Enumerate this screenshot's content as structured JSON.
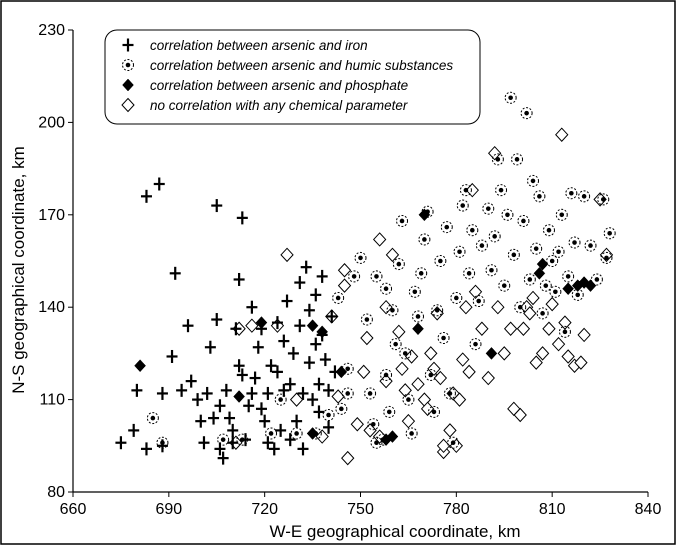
{
  "chart_data": {
    "type": "scatter",
    "xlabel": "W-E geographical coordinate, km",
    "ylabel": "N-S geographical coordinate, km",
    "xlim": [
      660,
      840
    ],
    "ylim": [
      80,
      230
    ],
    "x_ticks": [
      660,
      690,
      720,
      750,
      780,
      810,
      840
    ],
    "y_ticks": [
      80,
      110,
      140,
      170,
      200,
      230
    ],
    "x_tick_labels": [
      "660",
      "690",
      "720",
      "750",
      "780",
      "810",
      "840"
    ],
    "y_tick_labels": [
      "80",
      "110",
      "140",
      "170",
      "200",
      "230"
    ],
    "legend_position": "top-left",
    "grid": false,
    "series": [
      {
        "name": "correlation between arsenic and iron",
        "marker": "plus",
        "points": [
          [
            675,
            96
          ],
          [
            679,
            100
          ],
          [
            680,
            113
          ],
          [
            683,
            176
          ],
          [
            687,
            180
          ],
          [
            683,
            94
          ],
          [
            688,
            95
          ],
          [
            688,
            112
          ],
          [
            691,
            124
          ],
          [
            692,
            151
          ],
          [
            694,
            113
          ],
          [
            696,
            134
          ],
          [
            697,
            116
          ],
          [
            699,
            110
          ],
          [
            700,
            103
          ],
          [
            701,
            96
          ],
          [
            702,
            112
          ],
          [
            703,
            127
          ],
          [
            704,
            104
          ],
          [
            705,
            136
          ],
          [
            705,
            173
          ],
          [
            706,
            94
          ],
          [
            707,
            91
          ],
          [
            708,
            113
          ],
          [
            709,
            104
          ],
          [
            710,
            100
          ],
          [
            711,
            133
          ],
          [
            712,
            121
          ],
          [
            712,
            149
          ],
          [
            713,
            169
          ],
          [
            714,
            97
          ],
          [
            715,
            108
          ],
          [
            716,
            112
          ],
          [
            717,
            117
          ],
          [
            718,
            127
          ],
          [
            719,
            133
          ],
          [
            720,
            103
          ],
          [
            721,
            96
          ],
          [
            721,
            112
          ],
          [
            722,
            121
          ],
          [
            723,
            94
          ],
          [
            724,
            119
          ],
          [
            724,
            135
          ],
          [
            725,
            100
          ],
          [
            726,
            113
          ],
          [
            726,
            129
          ],
          [
            727,
            142
          ],
          [
            728,
            97
          ],
          [
            728,
            115
          ],
          [
            729,
            125
          ],
          [
            730,
            103
          ],
          [
            731,
            134
          ],
          [
            731,
            148
          ],
          [
            732,
            112
          ],
          [
            732,
            94
          ],
          [
            733,
            153
          ],
          [
            734,
            122
          ],
          [
            734,
            139
          ],
          [
            735,
            110
          ],
          [
            736,
            128
          ],
          [
            736,
            144
          ],
          [
            737,
            106
          ],
          [
            737,
            115
          ],
          [
            738,
            150
          ],
          [
            738,
            131
          ],
          [
            739,
            123
          ],
          [
            740,
            101
          ],
          [
            740,
            113
          ],
          [
            741,
            137
          ],
          [
            742,
            119
          ],
          [
            710,
            96
          ],
          [
            713,
            118
          ],
          [
            716,
            140
          ],
          [
            719,
            107
          ],
          [
            706,
            108
          ]
        ]
      },
      {
        "name": "correlation between arsenic and humic substances",
        "marker": "dotted-circle",
        "points": [
          [
            685,
            104
          ],
          [
            688,
            96
          ],
          [
            707,
            97
          ],
          [
            713,
            97
          ],
          [
            736,
            99
          ],
          [
            740,
            105
          ],
          [
            744,
            107
          ],
          [
            746,
            120
          ],
          [
            748,
            150
          ],
          [
            750,
            156
          ],
          [
            752,
            136
          ],
          [
            753,
            112
          ],
          [
            754,
            102
          ],
          [
            755,
            150
          ],
          [
            757,
            97
          ],
          [
            758,
            118
          ],
          [
            758,
            146
          ],
          [
            759,
            106
          ],
          [
            760,
            139
          ],
          [
            761,
            128
          ],
          [
            762,
            154
          ],
          [
            763,
            168
          ],
          [
            764,
            125
          ],
          [
            765,
            110
          ],
          [
            766,
            99
          ],
          [
            767,
            145
          ],
          [
            768,
            137
          ],
          [
            769,
            151
          ],
          [
            770,
            162
          ],
          [
            771,
            171
          ],
          [
            772,
            118
          ],
          [
            773,
            106
          ],
          [
            774,
            139
          ],
          [
            775,
            155
          ],
          [
            776,
            130
          ],
          [
            777,
            166
          ],
          [
            778,
            112
          ],
          [
            779,
            96
          ],
          [
            780,
            143
          ],
          [
            781,
            158
          ],
          [
            782,
            173
          ],
          [
            783,
            178
          ],
          [
            784,
            151
          ],
          [
            785,
            165
          ],
          [
            786,
            128
          ],
          [
            787,
            142
          ],
          [
            788,
            160
          ],
          [
            790,
            172
          ],
          [
            791,
            152
          ],
          [
            792,
            163
          ],
          [
            793,
            188
          ],
          [
            794,
            178
          ],
          [
            795,
            147
          ],
          [
            796,
            170
          ],
          [
            797,
            208
          ],
          [
            798,
            157
          ],
          [
            799,
            188
          ],
          [
            800,
            140
          ],
          [
            801,
            168
          ],
          [
            802,
            203
          ],
          [
            803,
            149
          ],
          [
            804,
            181
          ],
          [
            805,
            159
          ],
          [
            806,
            176
          ],
          [
            807,
            138
          ],
          [
            808,
            147
          ],
          [
            809,
            165
          ],
          [
            810,
            155
          ],
          [
            811,
            145
          ],
          [
            812,
            158
          ],
          [
            813,
            170
          ],
          [
            814,
            132
          ],
          [
            815,
            150
          ],
          [
            816,
            177
          ],
          [
            817,
            161
          ],
          [
            818,
            144
          ],
          [
            820,
            176
          ],
          [
            822,
            160
          ],
          [
            824,
            149
          ],
          [
            826,
            175
          ],
          [
            827,
            156
          ],
          [
            828,
            164
          ],
          [
            722,
            99
          ],
          [
            725,
            110
          ],
          [
            743,
            143
          ],
          [
            746,
            112
          ],
          [
            730,
            99
          ],
          [
            755,
            96
          ]
        ]
      },
      {
        "name": "correlation between arsenic and phosphate",
        "marker": "filled-diamond",
        "points": [
          [
            681,
            121
          ],
          [
            712,
            111
          ],
          [
            719,
            135
          ],
          [
            735,
            134
          ],
          [
            738,
            132
          ],
          [
            744,
            119
          ],
          [
            735,
            99
          ],
          [
            758,
            97
          ],
          [
            760,
            98
          ],
          [
            768,
            133
          ],
          [
            770,
            170
          ],
          [
            791,
            125
          ],
          [
            806,
            151
          ],
          [
            807,
            154
          ],
          [
            815,
            146
          ],
          [
            818,
            147
          ],
          [
            820,
            148
          ],
          [
            822,
            147
          ]
        ]
      },
      {
        "name": "no correlation with any chemical parameter",
        "marker": "open-diamond",
        "points": [
          [
            712,
            133
          ],
          [
            716,
            134
          ],
          [
            724,
            134
          ],
          [
            727,
            157
          ],
          [
            738,
            98
          ],
          [
            741,
            137
          ],
          [
            743,
            111
          ],
          [
            745,
            152
          ],
          [
            751,
            119
          ],
          [
            752,
            130
          ],
          [
            753,
            100
          ],
          [
            756,
            98
          ],
          [
            758,
            116
          ],
          [
            760,
            157
          ],
          [
            762,
            132
          ],
          [
            763,
            120
          ],
          [
            764,
            113
          ],
          [
            765,
            103
          ],
          [
            766,
            124
          ],
          [
            768,
            115
          ],
          [
            770,
            110
          ],
          [
            771,
            107
          ],
          [
            772,
            125
          ],
          [
            773,
            120
          ],
          [
            774,
            138
          ],
          [
            775,
            117
          ],
          [
            776,
            93
          ],
          [
            778,
            100
          ],
          [
            779,
            112
          ],
          [
            780,
            95
          ],
          [
            781,
            110
          ],
          [
            782,
            123
          ],
          [
            783,
            140
          ],
          [
            784,
            119
          ],
          [
            786,
            145
          ],
          [
            788,
            133
          ],
          [
            790,
            117
          ],
          [
            792,
            190
          ],
          [
            793,
            140
          ],
          [
            795,
            125
          ],
          [
            797,
            133
          ],
          [
            798,
            107
          ],
          [
            800,
            105
          ],
          [
            801,
            133
          ],
          [
            802,
            140
          ],
          [
            803,
            138
          ],
          [
            804,
            143
          ],
          [
            805,
            122
          ],
          [
            807,
            125
          ],
          [
            809,
            133
          ],
          [
            810,
            141
          ],
          [
            812,
            128
          ],
          [
            813,
            196
          ],
          [
            814,
            135
          ],
          [
            815,
            124
          ],
          [
            817,
            121
          ],
          [
            819,
            122
          ],
          [
            820,
            131
          ],
          [
            825,
            175
          ],
          [
            827,
            157
          ],
          [
            711,
            96
          ],
          [
            730,
            110
          ],
          [
            746,
            91
          ],
          [
            749,
            102
          ],
          [
            758,
            140
          ],
          [
            776,
            95
          ],
          [
            785,
            178
          ],
          [
            745,
            147
          ],
          [
            756,
            162
          ]
        ]
      }
    ]
  }
}
